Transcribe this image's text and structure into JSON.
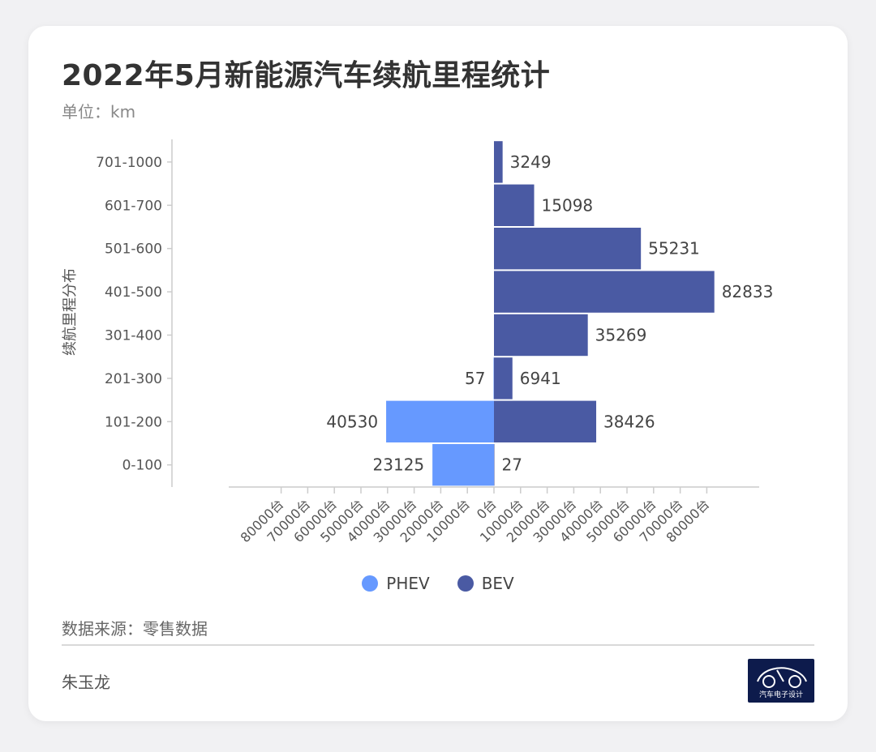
{
  "header": {
    "title": "2022年5月新能源汽车续航里程统计",
    "subtitle": "单位：km"
  },
  "footer": {
    "source": "数据来源：零售数据",
    "author": "朱玉龙",
    "logo_text": "汽车电子设计"
  },
  "colors": {
    "PHEV": "#6699ff",
    "BEV": "#4a5aa3",
    "axis": "#cccccc"
  },
  "chart_data": {
    "type": "bar",
    "orientation": "horizontal",
    "title": "2022年5月新能源汽车续航里程统计",
    "subtitle": "单位：km",
    "ylabel": "续航里程分布",
    "categories": [
      "0-100",
      "101-200",
      "201-300",
      "301-400",
      "401-500",
      "501-600",
      "601-700",
      "701-1000"
    ],
    "series": [
      {
        "name": "PHEV",
        "direction": "left",
        "values": [
          23125,
          40530,
          57,
          null,
          null,
          null,
          null,
          null
        ]
      },
      {
        "name": "BEV",
        "direction": "right",
        "values": [
          27,
          38426,
          6941,
          35269,
          82833,
          55231,
          15098,
          3249
        ]
      }
    ],
    "xticks": [
      "80000台",
      "70000台",
      "60000台",
      "50000台",
      "40000台",
      "30000台",
      "20000台",
      "10000台",
      "0台",
      "10000台",
      "20000台",
      "30000台",
      "40000台",
      "50000台",
      "60000台",
      "70000台",
      "80000台"
    ],
    "xlim": [
      -80000,
      80000
    ],
    "legend_position": "bottom",
    "grid": false
  }
}
